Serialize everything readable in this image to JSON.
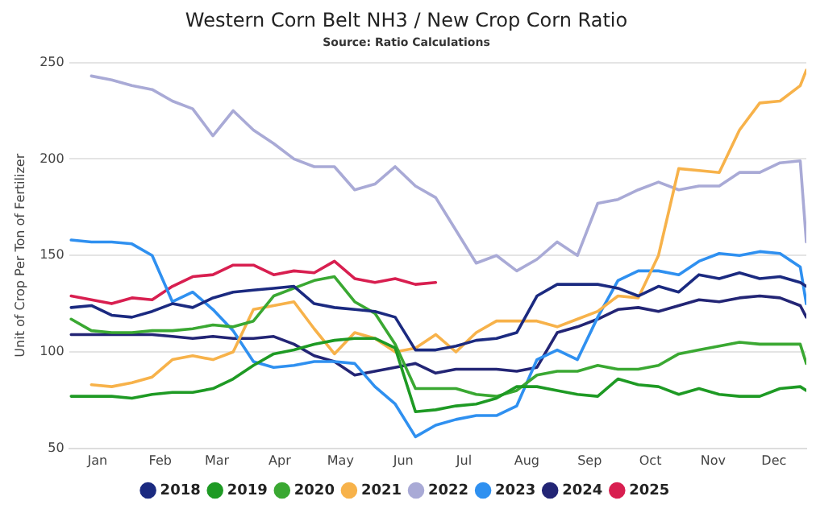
{
  "chart_data": {
    "type": "line",
    "title": "Western Corn Belt NH3 / New Crop Corn Ratio",
    "subtitle": "Source: Ratio Calculations",
    "ylabel": "Unit of Crop Per Ton of Fertilizer",
    "x": [
      "--01-02",
      "--01-12",
      "--01-22",
      "--02-01",
      "--02-11",
      "--02-21",
      "--03-03",
      "--03-13",
      "--03-23",
      "--04-02",
      "--04-12",
      "--04-22",
      "--05-02",
      "--05-12",
      "--05-22",
      "--06-01",
      "--06-11",
      "--06-21",
      "--07-01",
      "--07-11",
      "--07-21",
      "--07-31",
      "--08-10",
      "--08-20",
      "--08-30",
      "--09-09",
      "--09-19",
      "--09-29",
      "--10-09",
      "--10-19",
      "--10-29",
      "--11-08",
      "--11-18",
      "--11-28",
      "--12-08",
      "--12-18",
      "--12-28",
      "--12-31"
    ],
    "xlim": [
      "--01-01",
      "--12-31"
    ],
    "xticks": [
      {
        "value": "--01-15",
        "label": "Jan"
      },
      {
        "value": "--02-15",
        "label": "Feb"
      },
      {
        "value": "--03-15",
        "label": "Mar"
      },
      {
        "value": "--04-15",
        "label": "Apr"
      },
      {
        "value": "--05-15",
        "label": "May"
      },
      {
        "value": "--06-15",
        "label": "Jun"
      },
      {
        "value": "--07-15",
        "label": "Jul"
      },
      {
        "value": "--08-15",
        "label": "Aug"
      },
      {
        "value": "--09-15",
        "label": "Sep"
      },
      {
        "value": "--10-15",
        "label": "Oct"
      },
      {
        "value": "--11-15",
        "label": "Nov"
      },
      {
        "value": "--12-15",
        "label": "Dec"
      }
    ],
    "ylim": [
      50,
      250
    ],
    "yticks": [
      50,
      100,
      150,
      200,
      250
    ],
    "grid": "y",
    "legend": "bottom",
    "marker": "none",
    "line_style": "solid",
    "series": [
      {
        "name": "2018",
        "color": "#1b2a80",
        "values": [
          123,
          124,
          119,
          118,
          121,
          125,
          123,
          128,
          131,
          132,
          133,
          134,
          125,
          123,
          122,
          121,
          118,
          101,
          101,
          103,
          106,
          107,
          110,
          129,
          135,
          135,
          135,
          133,
          129,
          134,
          131,
          140,
          138,
          141,
          138,
          139,
          136,
          134
        ]
      },
      {
        "name": "2019",
        "color": "#1e9a24",
        "values": [
          77,
          77,
          77,
          76,
          78,
          79,
          79,
          81,
          86,
          93,
          99,
          101,
          104,
          106,
          107,
          107,
          102,
          69,
          70,
          72,
          73,
          76,
          82,
          82,
          80,
          78,
          77,
          86,
          83,
          82,
          78,
          81,
          78,
          77,
          77,
          81,
          82,
          80
        ]
      },
      {
        "name": "2020",
        "color": "#3aa832",
        "values": [
          117,
          111,
          110,
          110,
          111,
          111,
          112,
          114,
          113,
          116,
          129,
          133,
          137,
          139,
          126,
          120,
          104,
          81,
          81,
          81,
          78,
          77,
          80,
          88,
          90,
          90,
          93,
          91,
          91,
          93,
          99,
          101,
          103,
          105,
          104,
          104,
          104,
          94
        ]
      },
      {
        "name": "2021",
        "color": "#f7b24a",
        "values": [
          null,
          83,
          82,
          84,
          87,
          96,
          98,
          96,
          100,
          122,
          124,
          126,
          112,
          99,
          110,
          107,
          100,
          102,
          109,
          100,
          110,
          116,
          116,
          116,
          113,
          117,
          121,
          129,
          128,
          150,
          195,
          194,
          193,
          215,
          229,
          230,
          238,
          246
        ]
      },
      {
        "name": "2022",
        "color": "#a9aad6",
        "values": [
          null,
          243,
          241,
          238,
          236,
          230,
          226,
          212,
          225,
          215,
          208,
          200,
          196,
          196,
          184,
          187,
          196,
          186,
          180,
          163,
          146,
          150,
          142,
          148,
          157,
          150,
          177,
          179,
          184,
          188,
          184,
          186,
          186,
          193,
          193,
          198,
          199,
          157
        ]
      },
      {
        "name": "2023",
        "color": "#2f90f0",
        "values": [
          158,
          157,
          157,
          156,
          150,
          126,
          131,
          122,
          111,
          95,
          92,
          93,
          95,
          95,
          94,
          82,
          73,
          56,
          62,
          65,
          67,
          67,
          72,
          96,
          101,
          96,
          118,
          137,
          142,
          142,
          140,
          147,
          151,
          150,
          152,
          151,
          144,
          125
        ]
      },
      {
        "name": "2024",
        "color": "#232575",
        "values": [
          109,
          109,
          109,
          109,
          109,
          108,
          107,
          108,
          107,
          107,
          108,
          104,
          98,
          95,
          88,
          90,
          92,
          94,
          89,
          91,
          91,
          91,
          90,
          92,
          110,
          113,
          117,
          122,
          123,
          121,
          124,
          127,
          126,
          128,
          129,
          128,
          124,
          118
        ]
      },
      {
        "name": "2025",
        "color": "#d81f50",
        "values": [
          129,
          127,
          125,
          128,
          127,
          134,
          139,
          140,
          145,
          145,
          140,
          142,
          141,
          147,
          138,
          136,
          138,
          135,
          136,
          null,
          null,
          null,
          null,
          null,
          null,
          null,
          null,
          null,
          null,
          null,
          null,
          null,
          null,
          null,
          null,
          null,
          null,
          null
        ]
      }
    ]
  }
}
